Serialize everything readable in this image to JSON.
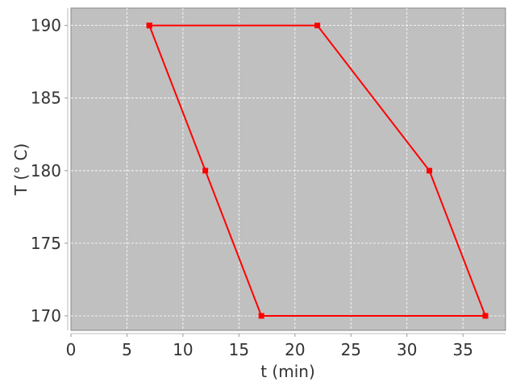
{
  "chart_data": {
    "type": "line",
    "title": "",
    "xlabel": "t (min)",
    "ylabel": "T (° C)",
    "xlim": [
      0,
      38.8
    ],
    "ylim": [
      169,
      191.2
    ],
    "xticks": [
      0,
      5,
      10,
      15,
      20,
      25,
      30,
      35
    ],
    "yticks": [
      170,
      175,
      180,
      185,
      190
    ],
    "grid": true,
    "colors": {
      "background": "#c0c0c0",
      "series": "#ff0000",
      "grid": "#ffffff"
    },
    "series": [
      {
        "x": [
          7,
          22,
          32,
          37,
          17,
          12,
          7
        ],
        "y": [
          190,
          190,
          180,
          170,
          170,
          180,
          190
        ],
        "marker": "square"
      }
    ]
  }
}
